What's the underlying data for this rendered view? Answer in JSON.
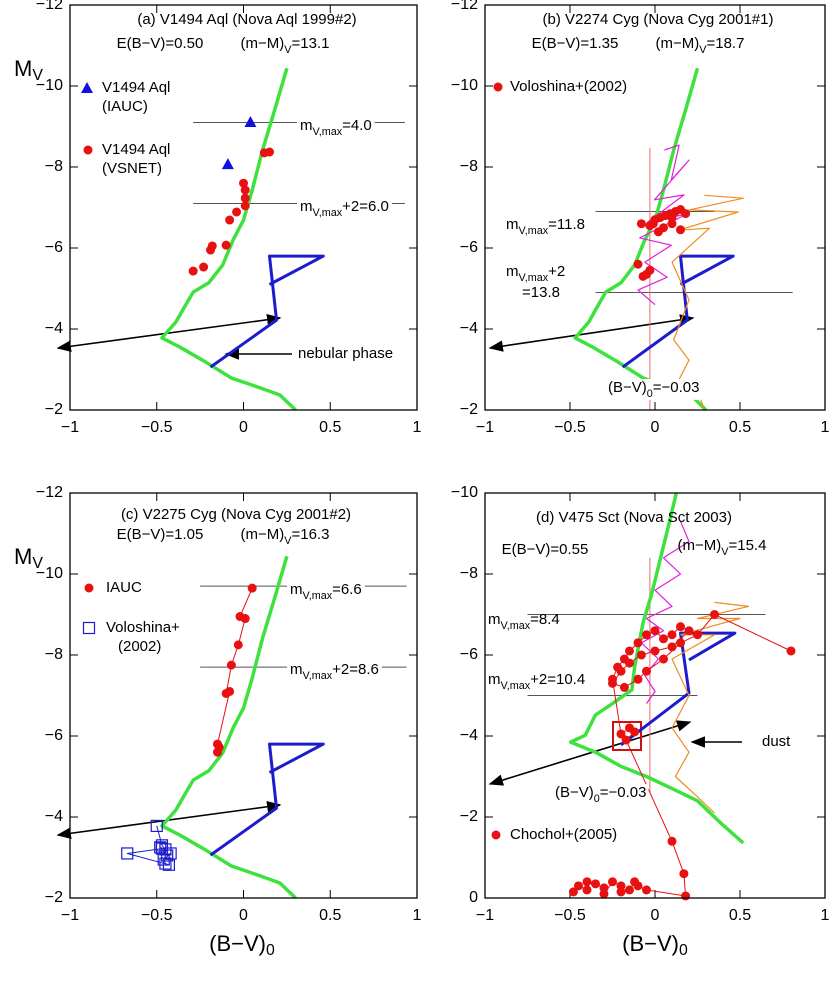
{
  "chart_data": [
    {
      "type": "scatter",
      "title": "(a) V1494 Aql (Nova Aql 1999#2)",
      "reddening": "E(B−V)=0.50",
      "distance_modulus": [
        "(m−M)",
        "V",
        "=13.1"
      ],
      "ylabel": [
        "M",
        "V"
      ],
      "xlim": [
        -1,
        1
      ],
      "xticks": [
        {
          "value": -1,
          "label": "−1"
        },
        {
          "value": -0.5,
          "label": "−0.5"
        },
        0,
        0.5,
        1
      ],
      "ylim": [
        -2,
        -12
      ],
      "yticks": [
        {
          "value": -12,
          "label": "−12"
        },
        {
          "value": -10,
          "label": "−10"
        },
        {
          "value": -8,
          "label": "−8"
        },
        {
          "value": -6,
          "label": "−6"
        },
        {
          "value": -4,
          "label": "−4"
        },
        {
          "value": -2,
          "label": "−2"
        }
      ],
      "series": [
        {
          "color": "#3ee23e",
          "line": true,
          "width": 3.5,
          "marker": "none",
          "x": [
            0.25,
            0.18,
            0.11,
            0.05,
            0.0,
            -0.06,
            -0.12,
            -0.2,
            -0.29,
            -0.35,
            -0.39,
            -0.47,
            -0.37,
            -0.22,
            -0.07,
            0.1,
            0.21,
            0.3
          ],
          "values": [
            -10.44,
            -9.41,
            -8.42,
            -7.43,
            -6.69,
            -6.2,
            -5.58,
            -5.14,
            -4.91,
            -4.47,
            -4.17,
            -3.78,
            -3.56,
            -3.19,
            -2.79,
            -2.54,
            -2.37,
            -2.0
          ]
        },
        {
          "color": "#1c1ccc",
          "line": true,
          "width": 3,
          "marker": "none",
          "x": [
            -0.19,
            0.19,
            0.15,
            0.46,
            0.15
          ],
          "values": [
            -3.06,
            -4.22,
            -5.8,
            -5.8,
            -5.1
          ]
        },
        {
          "name": [
            "V1494 Aql",
            "(IAUC)"
          ],
          "color": "#1010e0",
          "line": false,
          "marker": "triangle",
          "x": [
            0.04,
            -0.09
          ],
          "values": [
            -9.11,
            -8.07
          ]
        },
        {
          "name": [
            "V1494 Aql",
            "(VSNET)"
          ],
          "color": "#e81010",
          "line": false,
          "marker": "circle",
          "x": [
            0.12,
            0.15,
            0.0,
            0.01,
            0.01,
            0.01,
            -0.04,
            -0.08,
            -0.1,
            -0.18,
            -0.19,
            -0.23,
            -0.29
          ],
          "values": [
            -8.35,
            -8.37,
            -7.6,
            -7.43,
            -7.23,
            -7.04,
            -6.89,
            -6.69,
            -6.07,
            -6.05,
            -5.95,
            -5.53,
            -5.43
          ]
        }
      ],
      "hlines": [
        {
          "y": -9.1,
          "x": [
            -0.29,
            0.93
          ],
          "color": "#555555",
          "label": [
            [
              "m",
              "V,max",
              "=4.0"
            ]
          ]
        },
        {
          "y": -7.1,
          "x": [
            -0.29,
            0.93
          ],
          "color": "#555555",
          "label": [
            [
              "m",
              "V,max",
              "+2=6.0"
            ]
          ]
        }
      ],
      "annotations": [
        "nebular phase"
      ]
    },
    {
      "type": "scatter",
      "title": "(b) V2274 Cyg (Nova Cyg 2001#1)",
      "reddening": "E(B−V)=1.35",
      "distance_modulus": [
        "(m−M)",
        "V",
        "=18.7"
      ],
      "xlim": [
        -1,
        1
      ],
      "xticks": [
        {
          "value": -1,
          "label": "−1"
        },
        {
          "value": -0.5,
          "label": "−0.5"
        },
        0,
        0.5,
        1
      ],
      "ylim": [
        -2,
        -12
      ],
      "yticks": [
        {
          "value": -12,
          "label": "−12"
        },
        {
          "value": -10,
          "label": "−10"
        },
        {
          "value": -8,
          "label": "−8"
        },
        {
          "value": -6,
          "label": "−6"
        },
        {
          "value": -4,
          "label": "−4"
        },
        {
          "value": -2,
          "label": "−2"
        }
      ],
      "series": [
        {
          "color": "#3ee23e",
          "line": true,
          "width": 3.5,
          "marker": "none",
          "x": [
            0.25,
            0.18,
            0.11,
            0.05,
            0.0,
            -0.06,
            -0.12,
            -0.2,
            -0.29,
            -0.35,
            -0.39,
            -0.47,
            -0.37,
            -0.22,
            -0.07,
            0.1,
            0.21,
            0.3
          ],
          "values": [
            -10.44,
            -9.41,
            -8.42,
            -7.43,
            -6.69,
            -6.2,
            -5.58,
            -5.14,
            -4.91,
            -4.47,
            -4.17,
            -3.78,
            -3.56,
            -3.19,
            -2.79,
            -2.54,
            -2.37,
            -2.0
          ]
        },
        {
          "color": "#1c1ccc",
          "line": true,
          "width": 3,
          "marker": "none",
          "x": [
            -0.19,
            0.19,
            0.15,
            0.46,
            0.15
          ],
          "values": [
            -3.06,
            -4.22,
            -5.8,
            -5.8,
            -5.1
          ]
        },
        {
          "color": "#e020e0",
          "line": true,
          "width": 1.2,
          "marker": "none",
          "x": [
            0.055,
            0.142,
            0.096,
            0.2,
            -0.003,
            0.171,
            -0.043,
            0.188,
            -0.09,
            0.096,
            -0.06,
            0.072,
            -0.1,
            0.0
          ],
          "values": [
            -8.42,
            -8.54,
            -7.68,
            -8.17,
            -7.19,
            -7.31,
            -6.64,
            -6.84,
            -6.25,
            -6.07,
            -5.65,
            -5.28,
            -4.96,
            -4.6
          ]
        },
        {
          "color": "#f08c20",
          "line": true,
          "width": 1.2,
          "marker": "none",
          "x": [
            0.29,
            0.52,
            0.2,
            0.49,
            0.14,
            0.32,
            0.1,
            0.2,
            0.11,
            0.2,
            0.14,
            0.26,
            0.29
          ],
          "values": [
            -7.3,
            -7.23,
            -6.94,
            -6.89,
            -6.44,
            -6.49,
            -5.65,
            -4.72,
            -3.73,
            -3.23,
            -2.74,
            -2.37,
            -2.0
          ]
        },
        {
          "name": [
            "Voloshina+(2002)"
          ],
          "color": "#e81010",
          "line": false,
          "marker": "circle",
          "x": [
            -0.08,
            -0.03,
            0.0,
            0.03,
            0.06,
            0.09,
            0.12,
            0.15,
            0.18,
            0.1,
            0.05,
            0.15,
            0.02,
            -0.01,
            0.1,
            -0.1,
            -0.07,
            -0.05,
            -0.03
          ],
          "values": [
            -6.6,
            -6.55,
            -6.7,
            -6.75,
            -6.8,
            -6.85,
            -6.9,
            -6.95,
            -6.85,
            -6.6,
            -6.5,
            -6.45,
            -6.4,
            -6.6,
            -6.75,
            -5.6,
            -5.3,
            -5.35,
            -5.45
          ]
        }
      ],
      "hlines": [
        {
          "y": -6.9,
          "x": [
            -0.35,
            0.35
          ],
          "color": "#555555",
          "label": [
            [
              "m",
              "V,max",
              "=11.8"
            ]
          ]
        },
        {
          "y": -4.9,
          "x": [
            -0.35,
            0.81
          ],
          "color": "#555555",
          "label": [
            [
              "m",
              "V,max",
              "+2"
            ],
            [
              "=13.8"
            ]
          ]
        }
      ],
      "vlines": [
        {
          "x": -0.03,
          "y": [
            -2,
            -8.47
          ],
          "color": "#f06a6a",
          "label": [
            "(B−V)",
            "0",
            "=−0.03"
          ]
        }
      ]
    },
    {
      "type": "scatter",
      "title": "(c) V2275 Cyg (Nova Cyg 2001#2)",
      "reddening": "E(B−V)=1.05",
      "distance_modulus": [
        "(m−M)",
        "V",
        "=16.3"
      ],
      "ylabel": [
        "M",
        "V"
      ],
      "xlabel": [
        "(B−V)",
        "0"
      ],
      "xlim": [
        -1,
        1
      ],
      "xticks": [
        {
          "value": -1,
          "label": "−1"
        },
        {
          "value": -0.5,
          "label": "−0.5"
        },
        0,
        0.5,
        1
      ],
      "ylim": [
        -2,
        -12
      ],
      "yticks": [
        {
          "value": -12,
          "label": "−12"
        },
        {
          "value": -10,
          "label": "−10"
        },
        {
          "value": -8,
          "label": "−8"
        },
        {
          "value": -6,
          "label": "−6"
        },
        {
          "value": -4,
          "label": "−4"
        },
        {
          "value": -2,
          "label": "−2"
        }
      ],
      "series": [
        {
          "color": "#3ee23e",
          "line": true,
          "width": 3.5,
          "marker": "none",
          "x": [
            0.25,
            0.18,
            0.11,
            0.05,
            0.0,
            -0.06,
            -0.12,
            -0.2,
            -0.29,
            -0.35,
            -0.39,
            -0.47,
            -0.37,
            -0.22,
            -0.07,
            0.1,
            0.21,
            0.3
          ],
          "values": [
            -10.44,
            -9.41,
            -8.42,
            -7.43,
            -6.69,
            -6.2,
            -5.58,
            -5.14,
            -4.91,
            -4.47,
            -4.17,
            -3.78,
            -3.56,
            -3.19,
            -2.79,
            -2.54,
            -2.37,
            -2.0
          ]
        },
        {
          "color": "#1c1ccc",
          "line": true,
          "width": 3,
          "marker": "none",
          "x": [
            -0.19,
            0.19,
            0.15,
            0.46,
            0.15
          ],
          "values": [
            -3.06,
            -4.22,
            -5.8,
            -5.8,
            -5.1
          ]
        },
        {
          "name": [
            "IAUC"
          ],
          "color": "#e81010",
          "line": true,
          "width": 1,
          "marker": "circle",
          "x": [
            0.05,
            -0.02,
            0.01,
            -0.03,
            -0.07,
            -0.1,
            -0.08,
            -0.15,
            -0.14,
            -0.15
          ],
          "values": [
            -9.65,
            -8.95,
            -8.9,
            -8.25,
            -7.75,
            -7.05,
            -7.1,
            -5.8,
            -5.72,
            -5.6
          ]
        },
        {
          "name": [
            "Voloshina+",
            "(2002)"
          ],
          "color": "#1c1ccc",
          "line": true,
          "width": 1,
          "marker": "square",
          "x": [
            -0.5,
            -0.47,
            -0.45,
            -0.48,
            -0.44,
            -0.42,
            -0.46,
            -0.45,
            -0.43,
            -0.67,
            -0.47
          ],
          "values": [
            -3.78,
            -3.3,
            -3.2,
            -3.25,
            -3.05,
            -3.1,
            -2.95,
            -2.85,
            -2.82,
            -3.1,
            -3.22
          ]
        }
      ],
      "hlines": [
        {
          "y": -9.7,
          "x": [
            -0.25,
            0.94
          ],
          "color": "#555555",
          "label": [
            [
              "m",
              "V,max",
              "=6.6"
            ]
          ]
        },
        {
          "y": -7.7,
          "x": [
            -0.25,
            0.94
          ],
          "color": "#555555",
          "label": [
            [
              "m",
              "V,max",
              "+2=8.6"
            ]
          ]
        }
      ]
    },
    {
      "type": "scatter",
      "title": "(d) V475 Sct (Nova Sct 2003)",
      "reddening": "E(B−V)=0.55",
      "distance_modulus": [
        "(m−M)",
        "V",
        "=15.4"
      ],
      "xlabel": [
        "(B−V)",
        "0"
      ],
      "xlim": [
        -1,
        1
      ],
      "xticks": [
        {
          "value": -1,
          "label": "−1"
        },
        {
          "value": -0.5,
          "label": "−0.5"
        },
        0,
        0.5,
        1
      ],
      "ylim": [
        0,
        -10
      ],
      "yticks": [
        {
          "value": -10,
          "label": "−10"
        },
        {
          "value": -8,
          "label": "−8"
        },
        {
          "value": -6,
          "label": "−6"
        },
        {
          "value": -4,
          "label": "−4"
        },
        {
          "value": -2,
          "label": "−2"
        },
        0
      ],
      "series": [
        {
          "color": "#3ee23e",
          "line": true,
          "width": 3.5,
          "marker": "none",
          "x": [
            0.125,
            0.08,
            0.03,
            -0.02,
            -0.07,
            -0.09,
            -0.12,
            -0.136,
            -0.25,
            -0.35,
            -0.41,
            -0.496,
            -0.35,
            -0.2,
            -0.05,
            0.1,
            0.25,
            0.4,
            0.519
          ],
          "values": [
            -10,
            -9.2,
            -8.35,
            -7.5,
            -6.8,
            -6.37,
            -5.7,
            -5.14,
            -4.8,
            -4.52,
            -4.02,
            -3.85,
            -3.6,
            -3.25,
            -3.0,
            -2.7,
            -2.4,
            -1.8,
            -1.36
          ]
        },
        {
          "color": "#1c1ccc",
          "line": true,
          "width": 3,
          "marker": "none",
          "x": [
            -0.2,
            0.2,
            0.15,
            0.47,
            0.2
          ],
          "values": [
            -3.78,
            -5.06,
            -6.54,
            -6.54,
            -5.88
          ]
        },
        {
          "color": "#e020e0",
          "line": true,
          "width": 1.2,
          "marker": "none",
          "x": [
            0.15,
            0.2,
            0.05,
            0.15,
            0.0,
            0.1,
            -0.05,
            0.05,
            -0.08,
            0.02,
            -0.06,
            0.0,
            -0.05
          ],
          "values": [
            -9.3,
            -8.8,
            -8.4,
            -8.0,
            -7.6,
            -7.2,
            -6.9,
            -6.6,
            -6.3,
            -5.9,
            -5.5,
            -5.1,
            -4.8
          ]
        },
        {
          "color": "#f08c20",
          "line": true,
          "width": 1.2,
          "marker": "none",
          "x": [
            0.35,
            0.55,
            0.25,
            0.5,
            0.15,
            0.35,
            0.1,
            0.2,
            0.1,
            0.2,
            0.12,
            0.25,
            0.35
          ],
          "values": [
            -7.3,
            -7.2,
            -6.9,
            -6.9,
            -6.5,
            -6.5,
            -5.9,
            -5.0,
            -4.2,
            -3.6,
            -3.0,
            -2.5,
            -2.1
          ]
        },
        {
          "name": [
            "Chochol+(2005)"
          ],
          "color": "#e81010",
          "line": true,
          "width": 1,
          "marker": "circle",
          "x": [
            -0.48,
            -0.45,
            -0.4,
            -0.4,
            -0.35,
            -0.3,
            -0.3,
            -0.25,
            -0.2,
            -0.2,
            -0.15,
            -0.12,
            -0.1,
            -0.05,
            0.18,
            0.17,
            0.1,
            -0.17,
            -0.12,
            -0.15,
            -0.2,
            -0.25,
            -0.22,
            -0.18,
            -0.15,
            -0.1,
            -0.05,
            0.0,
            0.05,
            0.1,
            0.15,
            0.2,
            0.1,
            0.0,
            -0.08,
            -0.15,
            -0.2,
            -0.25,
            -0.18,
            -0.1,
            -0.05,
            0.05,
            0.15,
            0.25,
            0.35,
            0.8
          ],
          "values": [
            -0.15,
            -0.3,
            -0.2,
            -0.4,
            -0.35,
            -0.25,
            -0.1,
            -0.4,
            -0.3,
            -0.15,
            -0.2,
            -0.4,
            -0.3,
            -0.2,
            -0.05,
            -0.6,
            -1.4,
            -3.9,
            -4.1,
            -4.2,
            -4.05,
            -5.4,
            -5.7,
            -5.9,
            -6.1,
            -6.3,
            -6.5,
            -6.6,
            -6.4,
            -6.5,
            -6.7,
            -6.6,
            -6.2,
            -6.1,
            -6.0,
            -5.8,
            -5.6,
            -5.3,
            -5.2,
            -5.4,
            -5.6,
            -5.9,
            -6.3,
            -6.5,
            -7.0,
            -6.1
          ]
        }
      ],
      "hlines": [
        {
          "y": -7.0,
          "x": [
            -0.75,
            0.65
          ],
          "color": "#555555",
          "label": [
            [
              "m",
              "V,max",
              "=8.4"
            ]
          ]
        },
        {
          "y": -5.0,
          "x": [
            -0.75,
            0.25
          ],
          "color": "#555555",
          "label": [
            [
              "m",
              "V,max",
              "+2=10.4"
            ]
          ]
        }
      ],
      "vlines": [
        {
          "x": -0.03,
          "y": [
            -2.6,
            -8.4
          ],
          "color": "#f06a6a",
          "label": [
            "(B−V)",
            "0",
            "=−0.03"
          ]
        }
      ],
      "annotations": [
        "dust"
      ]
    }
  ]
}
